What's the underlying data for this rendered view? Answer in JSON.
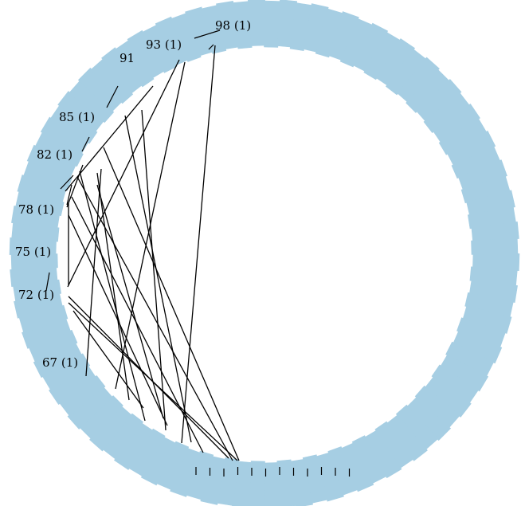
{
  "colors": {
    "ring": "#a6cee3",
    "background": "#ffffff",
    "ink": "#000000"
  },
  "labels": [
    {
      "id": "n98",
      "text": "98 (1)"
    },
    {
      "id": "n93",
      "text": "93 (1)"
    },
    {
      "id": "n91",
      "text": "91"
    },
    {
      "id": "n85",
      "text": "85 (1)"
    },
    {
      "id": "n82",
      "text": "82 (1)"
    },
    {
      "id": "n78",
      "text": "78 (1)"
    },
    {
      "id": "n75",
      "text": "75 (1)"
    },
    {
      "id": "n72",
      "text": "72 (1)"
    },
    {
      "id": "n67",
      "text": "67 (1)"
    }
  ]
}
